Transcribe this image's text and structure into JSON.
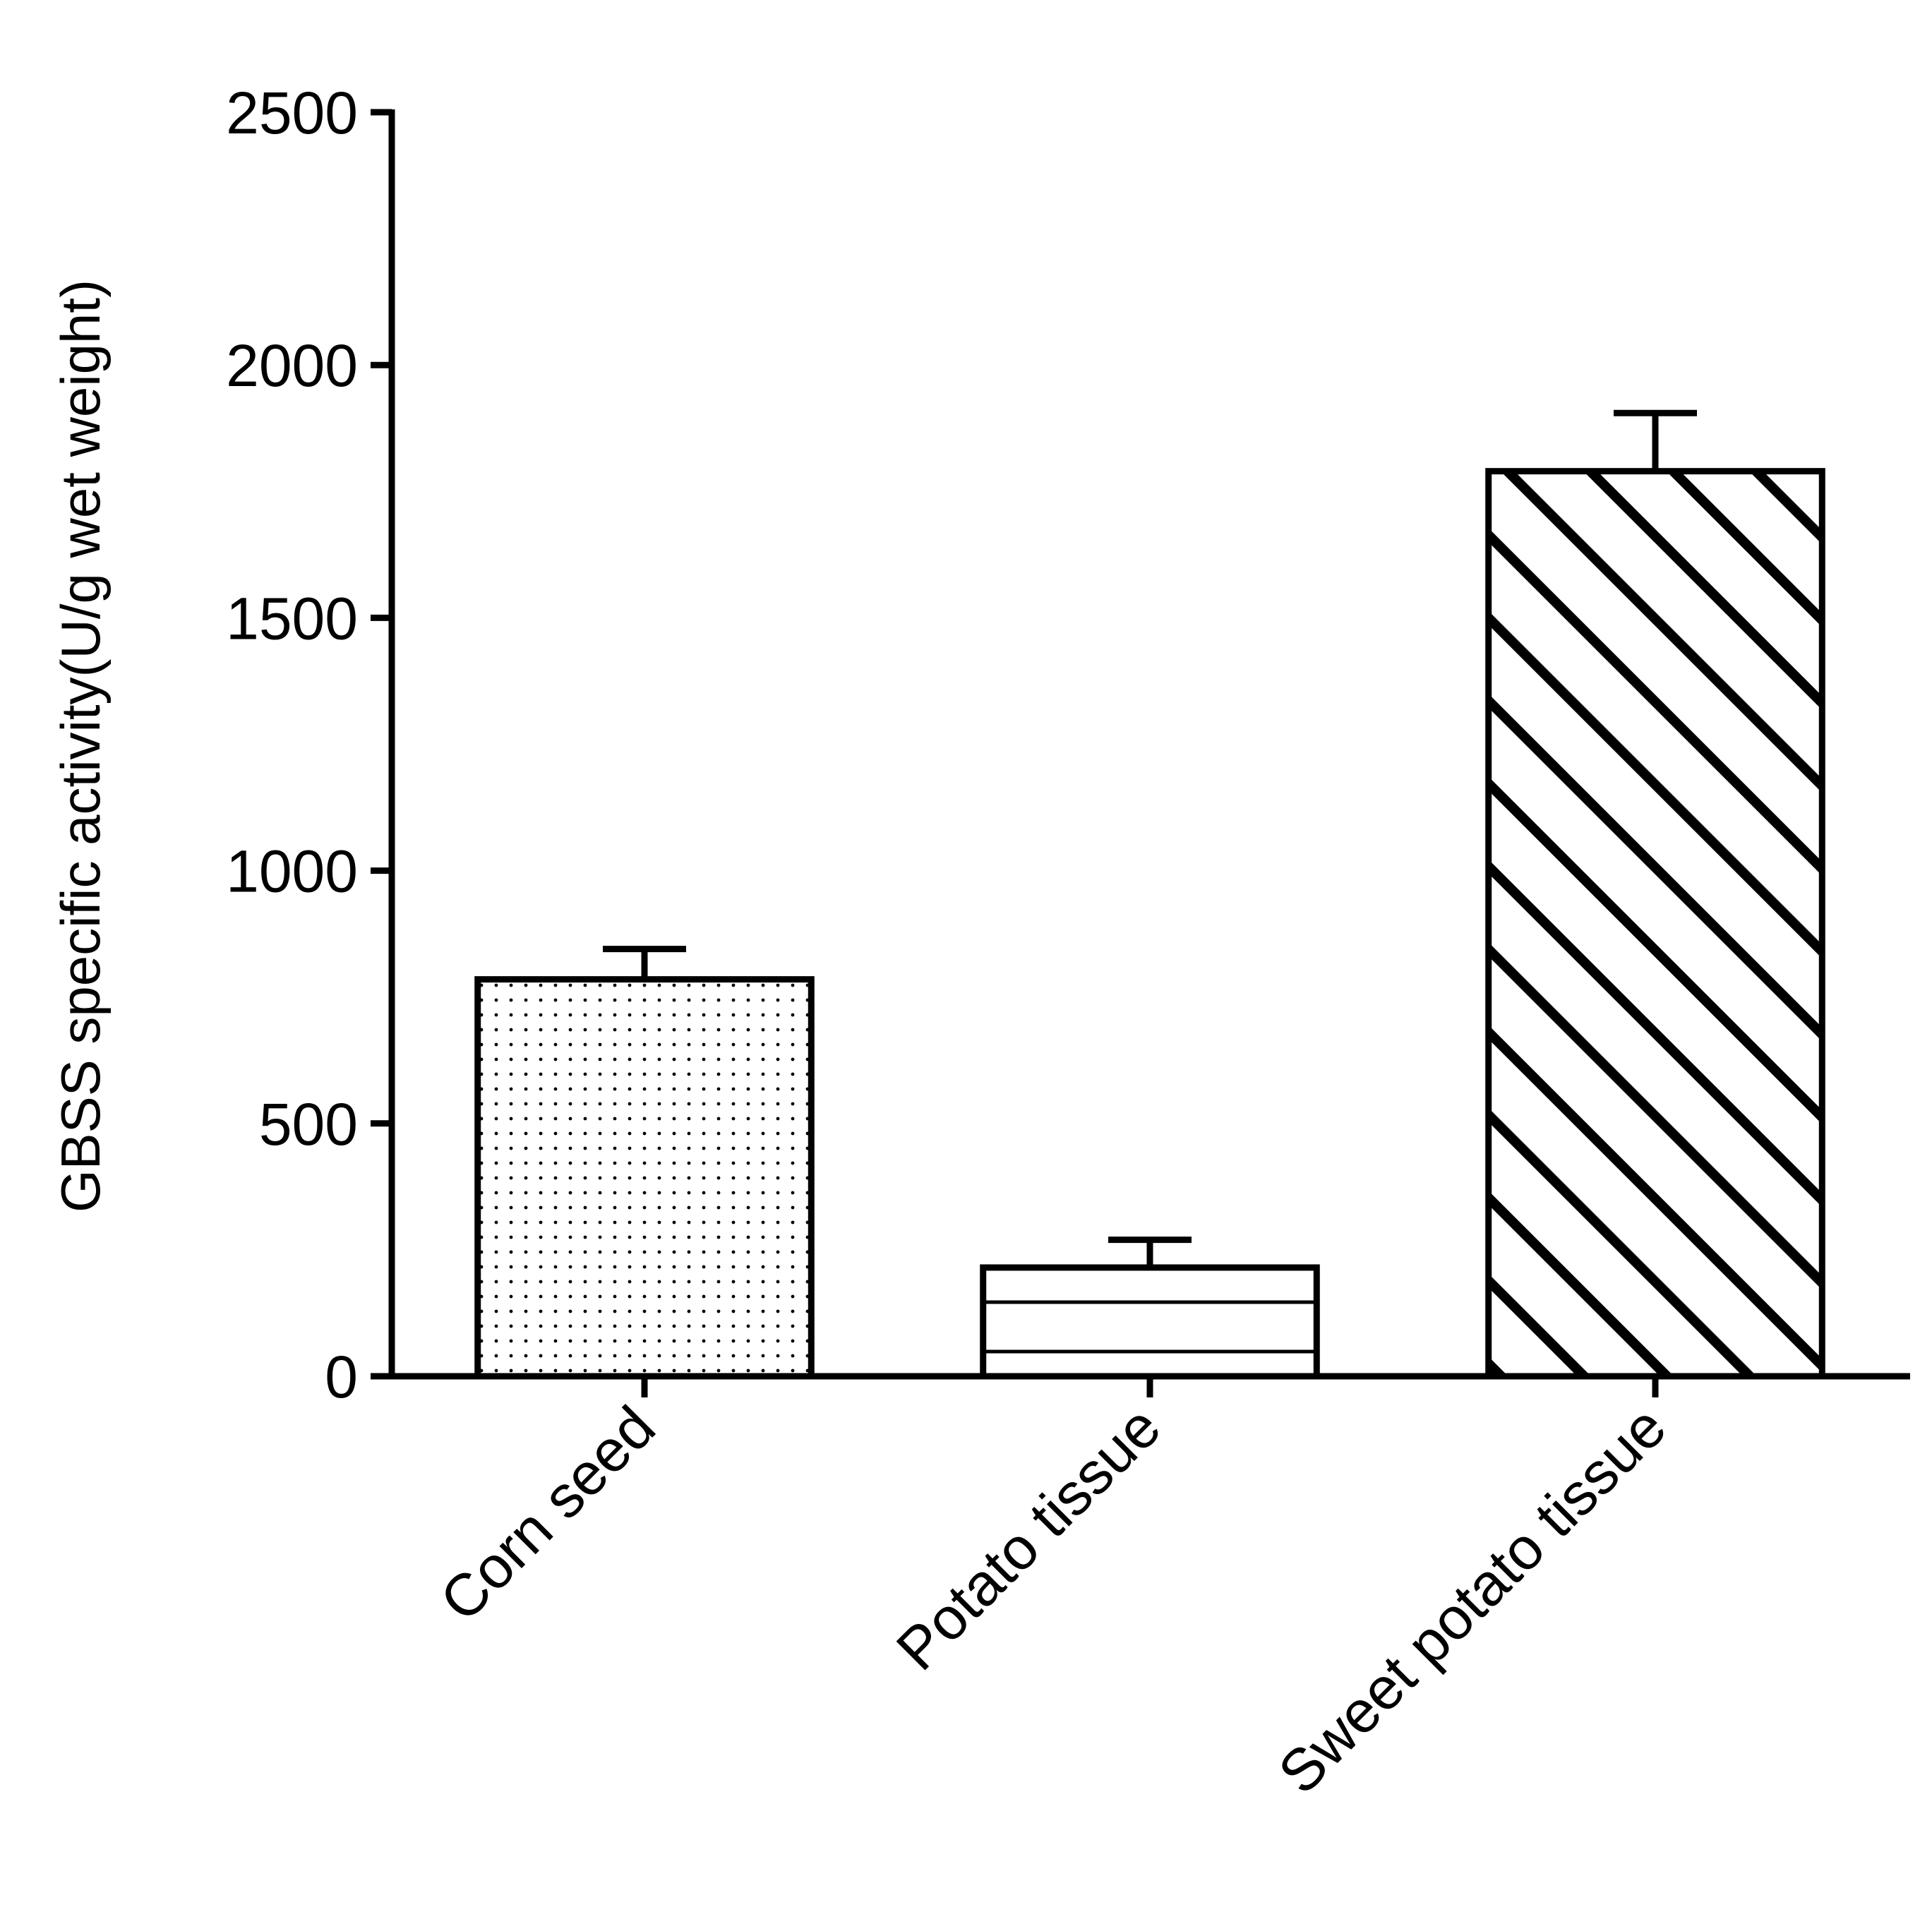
{
  "chart_data": {
    "type": "bar",
    "ylabel": "GBSS specific activity(U/g wet weight)",
    "categories": [
      "Corn seed",
      "Potato tissue",
      "Sweet potato tissue"
    ],
    "values": [
      785,
      215,
      1790
    ],
    "errors": [
      60,
      55,
      115
    ],
    "patterns": [
      "dots",
      "horizontal",
      "diagonal"
    ],
    "color": "#000000",
    "ylim": [
      0,
      2500
    ],
    "yticks": [
      0,
      500,
      1000,
      1500,
      2000,
      2500
    ],
    "grid": false
  }
}
